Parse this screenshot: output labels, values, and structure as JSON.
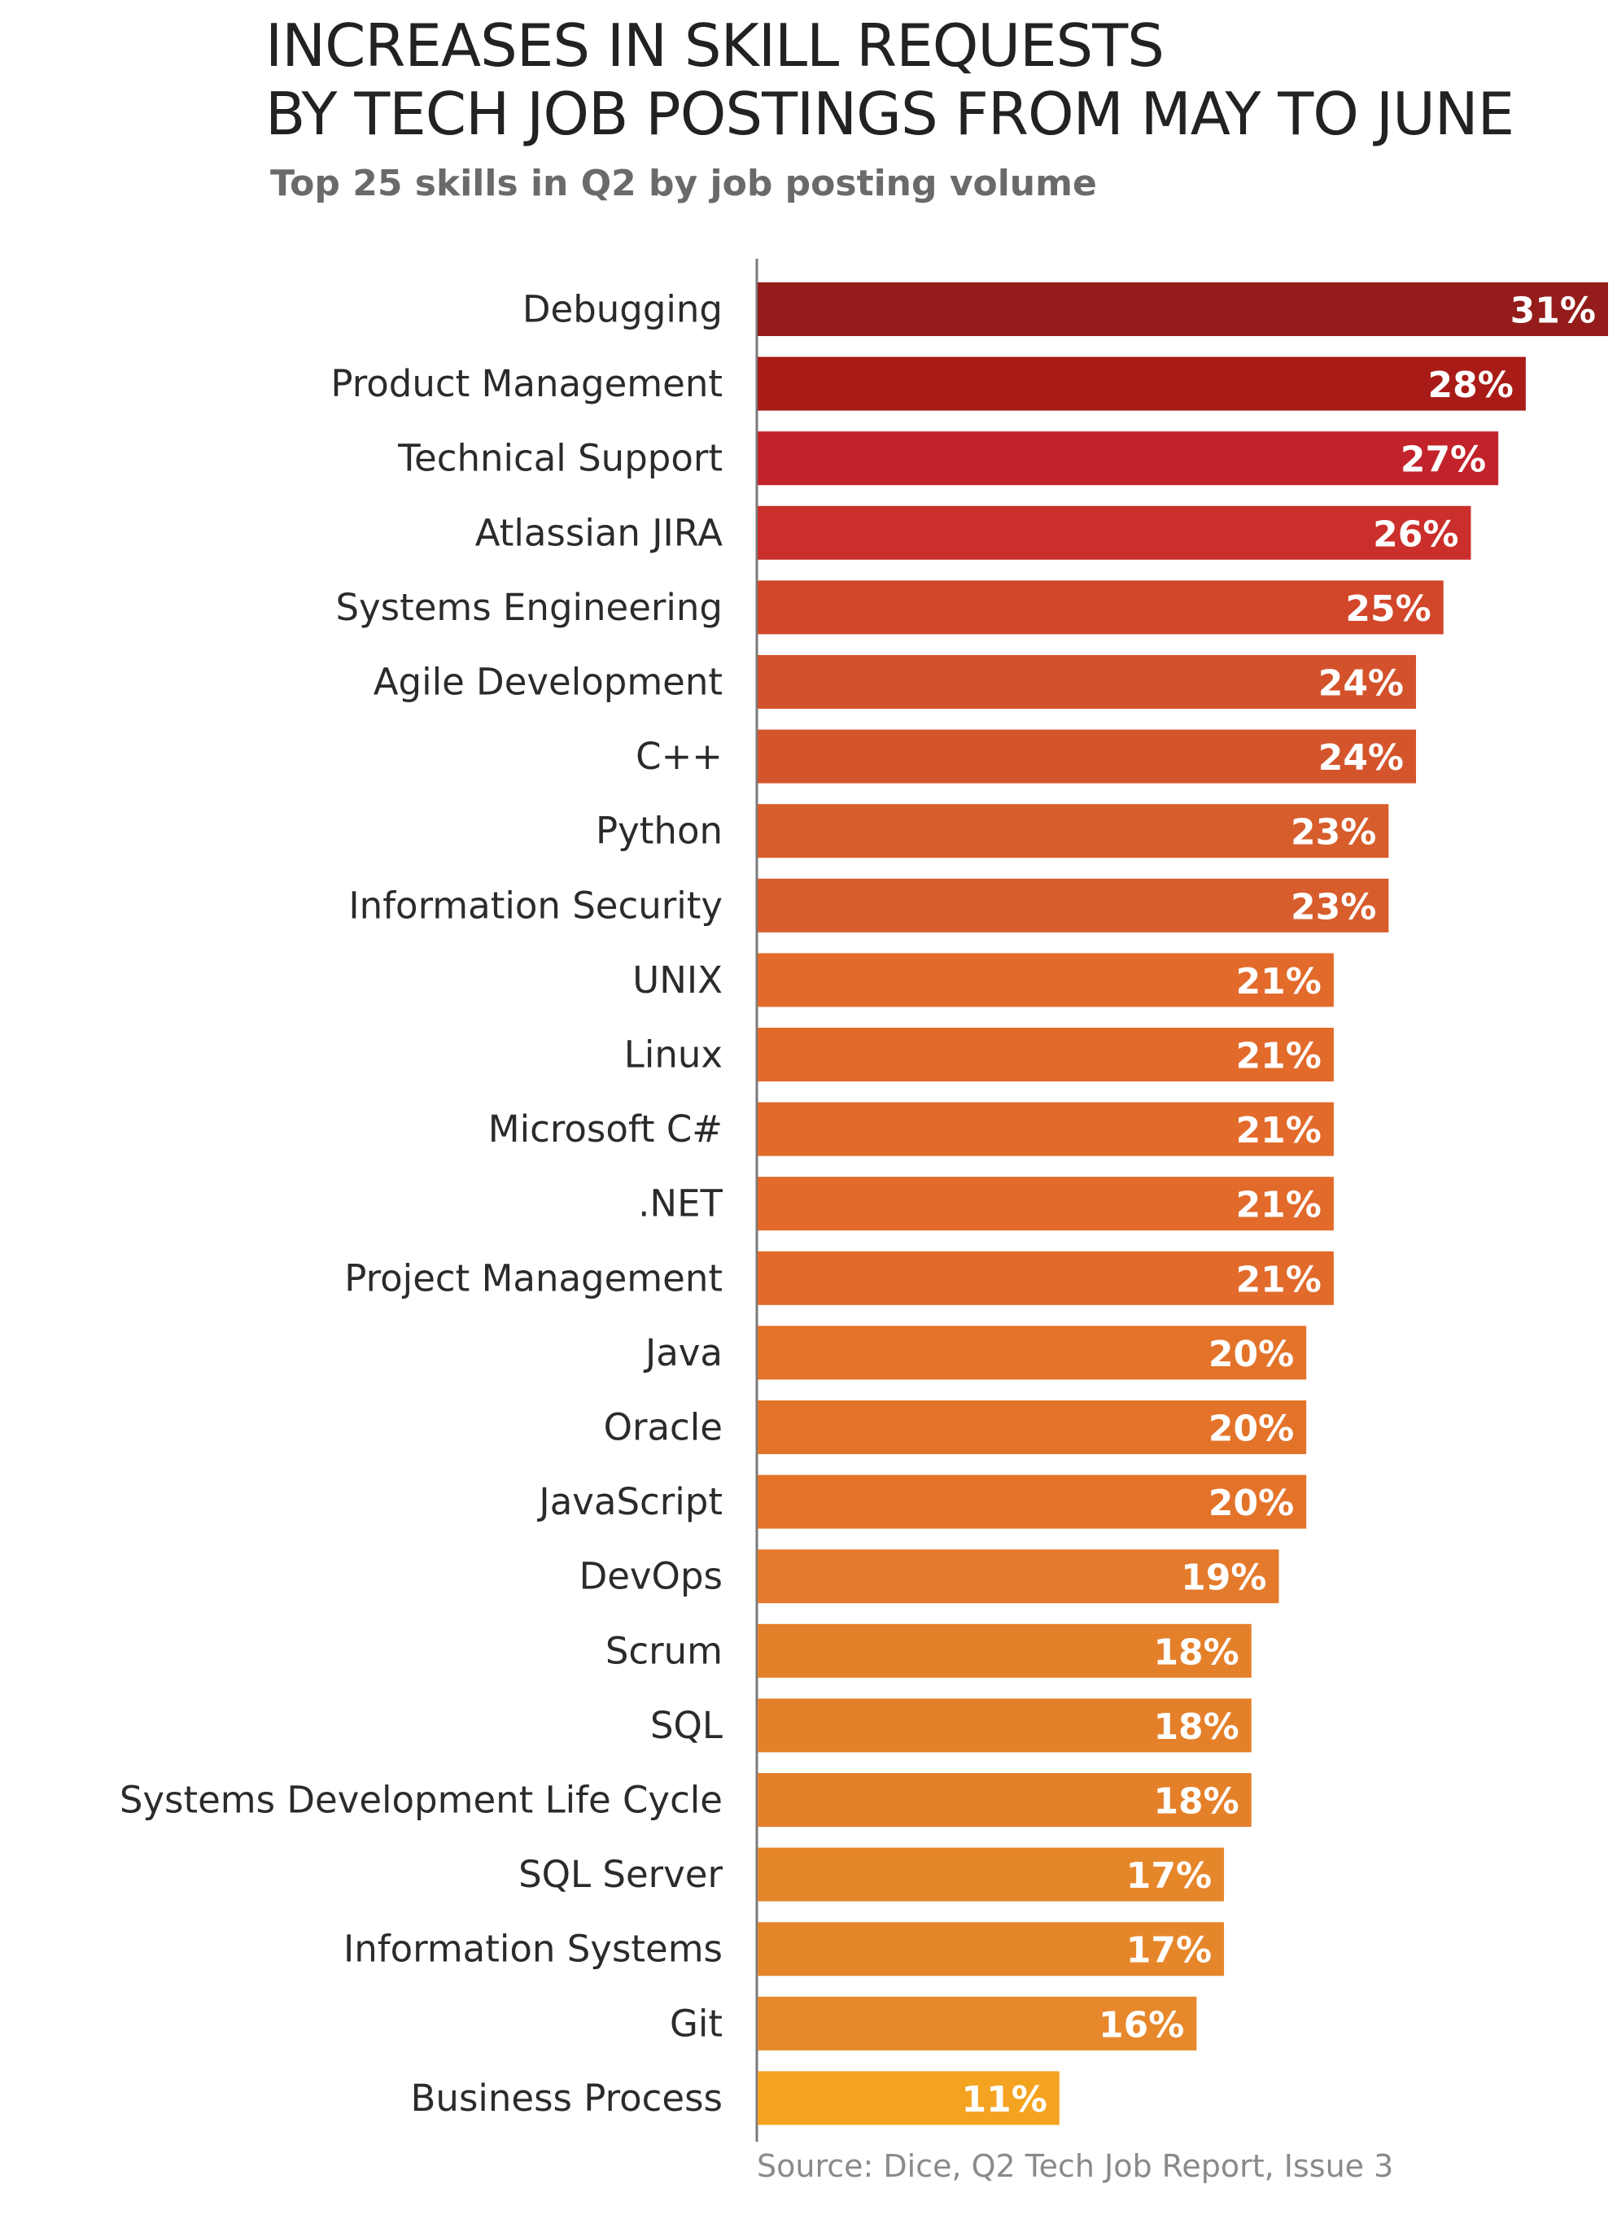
{
  "chart_data": {
    "type": "bar",
    "orientation": "horizontal",
    "title_line1": "INCREASES IN SKILL REQUESTS",
    "title_line2": "BY TECH JOB POSTINGS FROM MAY TO JUNE",
    "subtitle": "Top 25 skills in Q2 by job posting volume",
    "source": "Source: Dice, Q2 Tech Job Report, Issue 3",
    "xlim": [
      0,
      31
    ],
    "categories": [
      "Debugging",
      "Product Management",
      "Technical Support",
      "Atlassian JIRA",
      "Systems Engineering",
      "Agile Development",
      "C++",
      "Python",
      "Information Security",
      "UNIX",
      "Linux",
      "Microsoft C#",
      ".NET",
      "Project Management",
      "Java",
      "Oracle",
      "JavaScript",
      "DevOps",
      "Scrum",
      "SQL",
      "Systems Development Life Cycle",
      "SQL Server",
      "Information Systems",
      "Git",
      "Business Process"
    ],
    "values": [
      31,
      28,
      27,
      26,
      25,
      24,
      24,
      23,
      23,
      21,
      21,
      21,
      21,
      21,
      20,
      20,
      20,
      19,
      18,
      18,
      18,
      17,
      17,
      16,
      11
    ],
    "value_labels": [
      "31%",
      "28%",
      "27%",
      "26%",
      "25%",
      "24%",
      "24%",
      "23%",
      "23%",
      "21%",
      "21%",
      "21%",
      "21%",
      "21%",
      "20%",
      "20%",
      "20%",
      "19%",
      "18%",
      "18%",
      "18%",
      "17%",
      "17%",
      "16%",
      "11%"
    ],
    "colors": [
      "#941c1a",
      "#a91b16",
      "#c2232a",
      "#cb2f2b",
      "#d2462a",
      "#d4522b",
      "#d4552c",
      "#d75d2c",
      "#d75d2c",
      "#e26a2b",
      "#e26a2b",
      "#e26a2b",
      "#e26a2b",
      "#e26a2b",
      "#e4732a",
      "#e4732a",
      "#e4732a",
      "#e47a2b",
      "#e5802a",
      "#e5802a",
      "#e5802a",
      "#e6862b",
      "#e6862b",
      "#e6882b",
      "#f4a321"
    ],
    "grid": false,
    "legend": "none"
  }
}
